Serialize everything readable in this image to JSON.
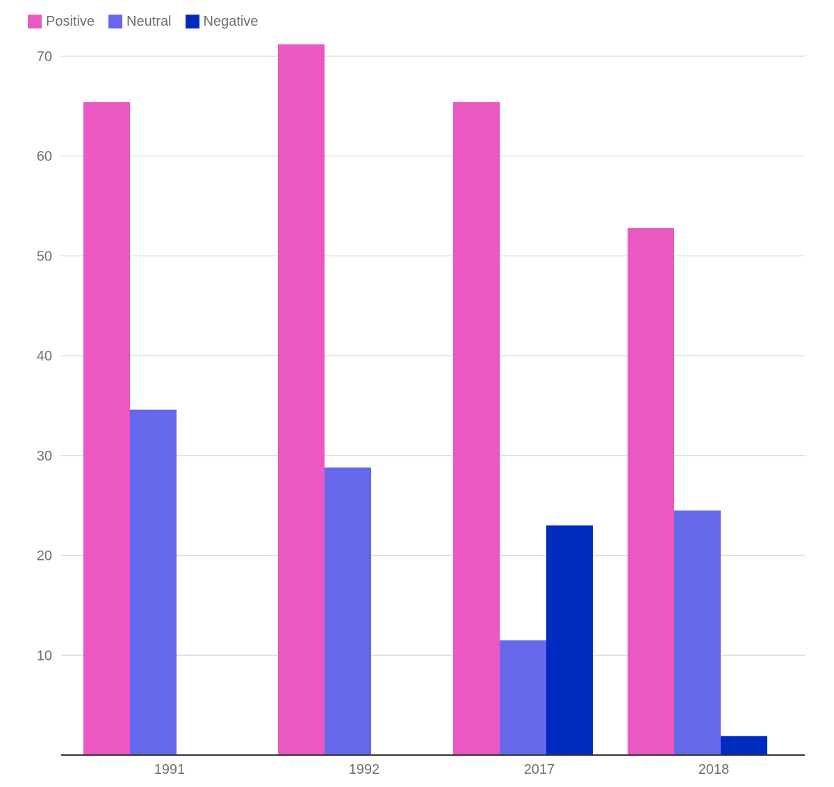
{
  "chart_data": {
    "type": "bar",
    "categories": [
      "1991",
      "1992",
      "2017",
      "2018"
    ],
    "series": [
      {
        "name": "Positive",
        "color": "#eb58c2",
        "values": [
          65.4,
          71.2,
          65.4,
          52.8
        ]
      },
      {
        "name": "Neutral",
        "color": "#6668eb",
        "values": [
          34.6,
          28.8,
          11.5,
          24.5
        ]
      },
      {
        "name": "Negative",
        "color": "#002bbf",
        "values": [
          0,
          0,
          23.0,
          1.9
        ]
      }
    ],
    "yticks": [
      10,
      20,
      30,
      40,
      50,
      60,
      70
    ],
    "ylim": [
      0,
      70.9
    ],
    "grid": true,
    "legend_position": "top-left",
    "title": "",
    "xlabel": "",
    "ylabel": ""
  }
}
